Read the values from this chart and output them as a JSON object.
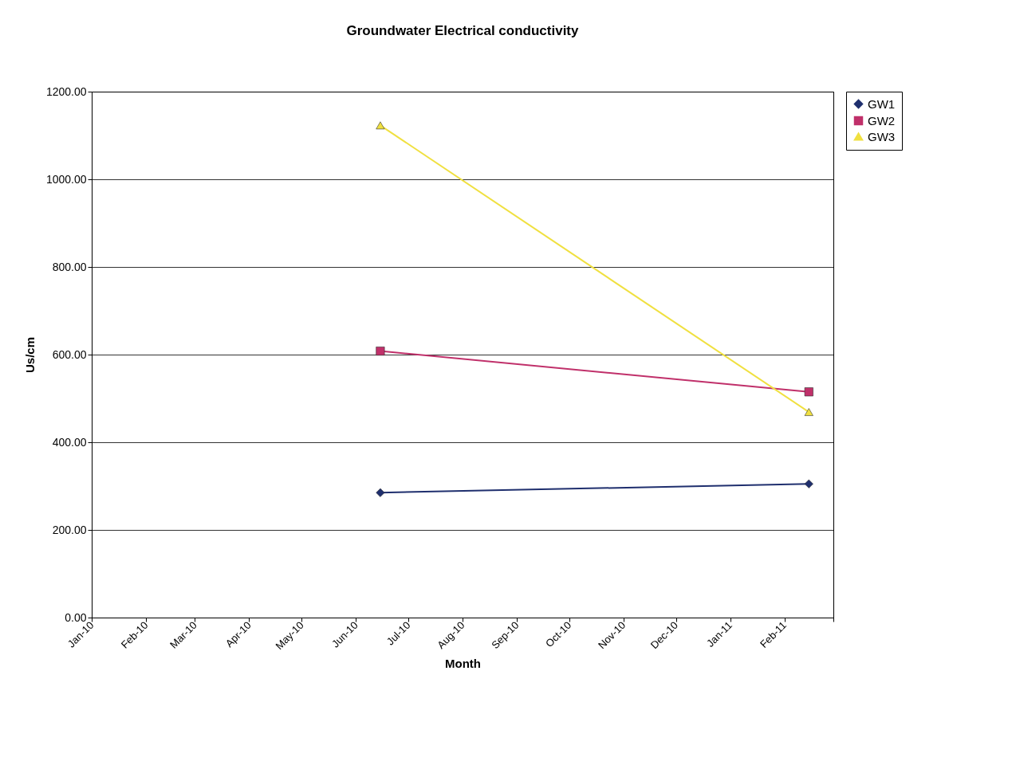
{
  "chart_data": {
    "type": "line",
    "title": "Groundwater Electrical conductivity",
    "xlabel": "Month",
    "ylabel": "Us/cm",
    "x": [
      "2010-06-15",
      "2011-02-15"
    ],
    "series": [
      {
        "name": "GW1",
        "color": "#1f2f6e",
        "marker": "diamond",
        "values": [
          285,
          305
        ]
      },
      {
        "name": "GW2",
        "color": "#c0306a",
        "marker": "square",
        "values": [
          608,
          515
        ]
      },
      {
        "name": "GW3",
        "color": "#f0e040",
        "marker": "triangle",
        "values": [
          1123,
          469
        ]
      }
    ],
    "xlim": [
      "2010-01-01",
      "2011-03-01"
    ],
    "xticks": [
      {
        "value": "2010-01-01",
        "label": "Jan-10"
      },
      {
        "value": "2010-02-01",
        "label": "Feb-10"
      },
      {
        "value": "2010-03-01",
        "label": "Mar-10"
      },
      {
        "value": "2010-04-01",
        "label": "Apr-10"
      },
      {
        "value": "2010-05-01",
        "label": "May-10"
      },
      {
        "value": "2010-06-01",
        "label": "Jun-10"
      },
      {
        "value": "2010-07-01",
        "label": "Jul-10"
      },
      {
        "value": "2010-08-01",
        "label": "Aug-10"
      },
      {
        "value": "2010-09-01",
        "label": "Sep-10"
      },
      {
        "value": "2010-10-01",
        "label": "Oct-10"
      },
      {
        "value": "2010-11-01",
        "label": "Nov-10"
      },
      {
        "value": "2010-12-01",
        "label": "Dec-10"
      },
      {
        "value": "2011-01-01",
        "label": "Jan-11"
      },
      {
        "value": "2011-02-01",
        "label": "Feb-11"
      },
      {
        "value": "2011-03-01",
        "label": null
      }
    ],
    "ylim": [
      0,
      1200
    ],
    "yticks": [
      {
        "value": 0,
        "label": "0.00"
      },
      {
        "value": 200,
        "label": "200.00"
      },
      {
        "value": 400,
        "label": "400.00"
      },
      {
        "value": 600,
        "label": "600.00"
      },
      {
        "value": 800,
        "label": "800.00"
      },
      {
        "value": 1000,
        "label": "1000.00"
      },
      {
        "value": 1200,
        "label": "1200.00"
      }
    ],
    "grid": "y",
    "legend": "right"
  }
}
